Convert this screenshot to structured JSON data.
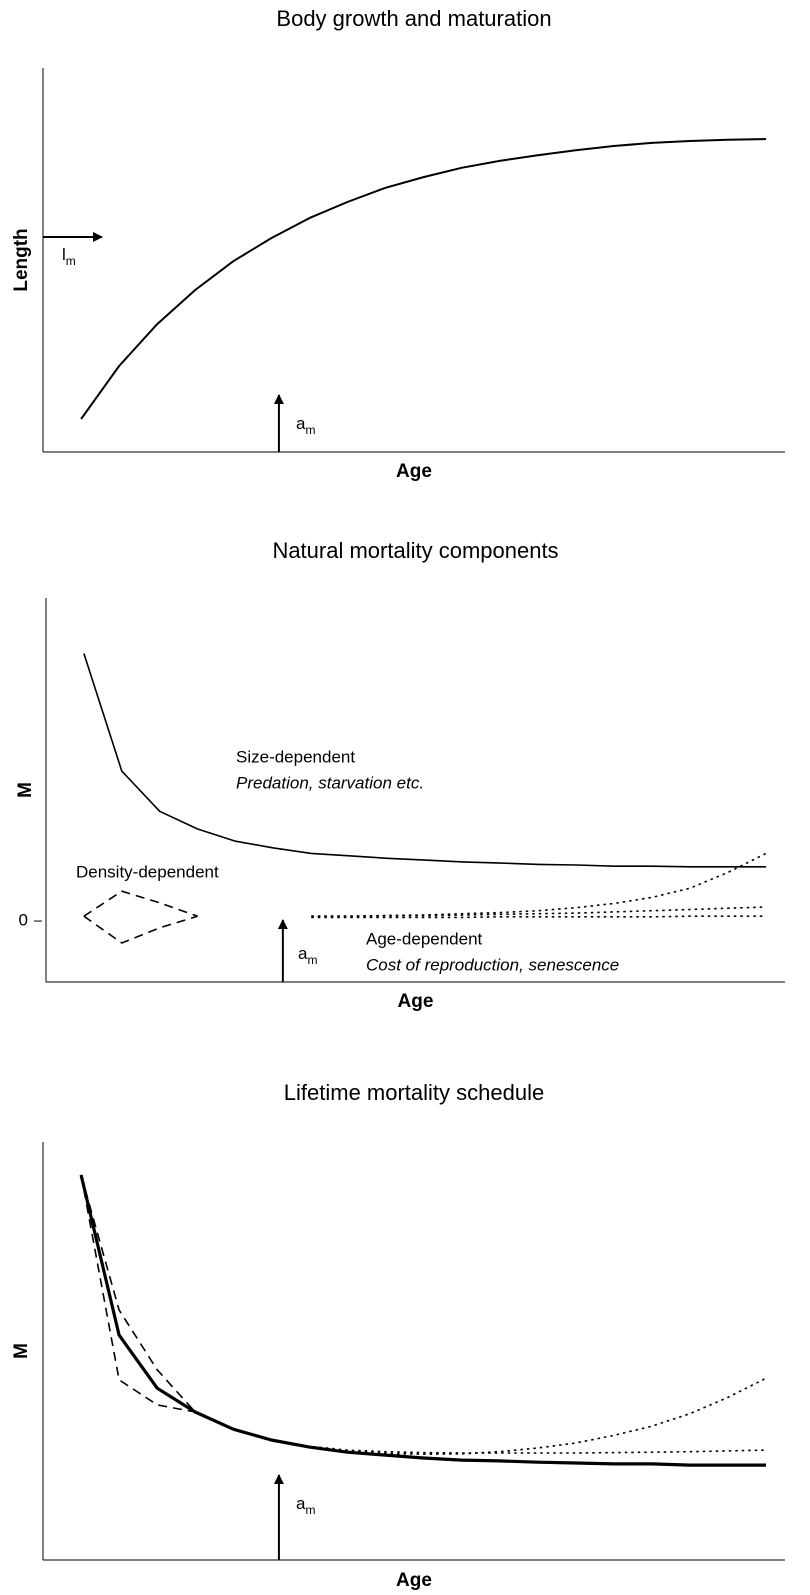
{
  "chart_data": [
    {
      "type": "line",
      "title": "Body growth and maturation",
      "xlabel": "Age",
      "ylabel": "Length",
      "xlim": [
        0,
        19.5
      ],
      "ylim": [
        0,
        100
      ],
      "x": [
        1,
        2,
        3,
        4,
        5,
        6,
        7,
        8,
        9,
        10,
        11,
        12,
        13,
        14,
        15,
        16,
        17,
        18,
        19
      ],
      "series": [
        {
          "color": "#000000",
          "dash": "solid",
          "width": 2,
          "values": [
            8.6,
            22.4,
            33.3,
            42.2,
            49.7,
            55.7,
            60.9,
            65.1,
            68.8,
            71.6,
            74.0,
            75.8,
            77.3,
            78.6,
            79.7,
            80.5,
            81.0,
            81.3,
            81.5
          ]
        }
      ],
      "maturity_length": {
        "value": 56,
        "symbol": "l",
        "subscript": "m"
      },
      "maturity_age": {
        "value": 6.2,
        "symbol": "a",
        "subscript": "m"
      },
      "annotations": []
    },
    {
      "type": "line",
      "title": "Natural mortality components",
      "xlabel": "Age",
      "ylabel": "M",
      "xlim": [
        0,
        19.5
      ],
      "ylim": [
        -1,
        5.3
      ],
      "yticks": [
        0
      ],
      "x": [
        1,
        2,
        3,
        4,
        5,
        6,
        7,
        8,
        9,
        10,
        11,
        12,
        13,
        14,
        15,
        16,
        17,
        18,
        19
      ],
      "series": [
        {
          "color": "#000000",
          "dash": "solid",
          "width": 1.6,
          "values": [
            4.39,
            2.46,
            1.8,
            1.51,
            1.31,
            1.2,
            1.11,
            1.07,
            1.03,
            1.0,
            0.97,
            0.95,
            0.93,
            0.92,
            0.9,
            0.9,
            0.89,
            0.89,
            0.89
          ]
        },
        {
          "color": "#000000",
          "dash": "dashed",
          "width": 1.6,
          "values": [
            0.08,
            0.49,
            0.3,
            0.08,
            null,
            null,
            null,
            null,
            null,
            null,
            null,
            null,
            null,
            null,
            null,
            null,
            null,
            null,
            null
          ]
        },
        {
          "color": "#000000",
          "dash": "dashed",
          "width": 1.6,
          "values": [
            0.08,
            -0.36,
            -0.11,
            0.08,
            null,
            null,
            null,
            null,
            null,
            null,
            null,
            null,
            null,
            null,
            null,
            null,
            null,
            null,
            null
          ]
        },
        {
          "color": "#000000",
          "dash": "dotted",
          "width": 1.6,
          "values": [
            null,
            null,
            null,
            null,
            null,
            null,
            0.08,
            0.08,
            0.09,
            0.1,
            0.12,
            0.14,
            0.17,
            0.22,
            0.29,
            0.39,
            0.54,
            0.8,
            1.11
          ]
        },
        {
          "color": "#000000",
          "dash": "dotted",
          "width": 1.6,
          "values": [
            null,
            null,
            null,
            null,
            null,
            null,
            0.08,
            0.08,
            0.09,
            0.09,
            0.1,
            0.11,
            0.12,
            0.13,
            0.15,
            0.17,
            0.19,
            0.21,
            0.23
          ]
        },
        {
          "color": "#000000",
          "dash": "dotted",
          "width": 1.6,
          "values": [
            null,
            null,
            null,
            null,
            null,
            null,
            0.06,
            0.06,
            0.06,
            0.06,
            0.06,
            0.07,
            0.07,
            0.07,
            0.07,
            0.07,
            0.08,
            0.08,
            0.08
          ]
        }
      ],
      "maturity_age": {
        "value": 6.25,
        "symbol": "a",
        "subscript": "m"
      },
      "annotations": [
        {
          "text": "Size-dependent",
          "italic": false
        },
        {
          "text": "Predation, starvation etc.",
          "italic": true
        },
        {
          "text": "Density-dependent",
          "italic": false
        },
        {
          "text": "Age-dependent",
          "italic": false
        },
        {
          "text": "Cost of reproduction, senescence",
          "italic": true
        }
      ]
    },
    {
      "type": "line",
      "title": "Lifetime mortality schedule",
      "xlabel": "Age",
      "ylabel": "M",
      "xlim": [
        0,
        19.5
      ],
      "ylim": [
        0,
        100
      ],
      "x": [
        1,
        2,
        3,
        4,
        5,
        6,
        7,
        8,
        9,
        10,
        11,
        12,
        13,
        14,
        15,
        16,
        17,
        18,
        19
      ],
      "series": [
        {
          "color": "#000000",
          "dash": "dashed",
          "width": 1.6,
          "values": [
            92.1,
            43.1,
            37.1,
            35.4,
            null,
            null,
            null,
            null,
            null,
            null,
            null,
            null,
            null,
            null,
            null,
            null,
            null,
            null,
            null
          ]
        },
        {
          "color": "#000000",
          "dash": "dashed",
          "width": 1.6,
          "values": [
            92.1,
            59.8,
            45.5,
            35.4,
            null,
            null,
            null,
            null,
            null,
            null,
            null,
            null,
            null,
            null,
            null,
            null,
            null,
            null,
            null
          ]
        },
        {
          "color": "#000000",
          "dash": "dotted",
          "width": 1.6,
          "values": [
            null,
            null,
            null,
            35.4,
            31.3,
            28.7,
            27.0,
            26.0,
            25.5,
            25.3,
            25.4,
            25.9,
            26.8,
            28.0,
            29.8,
            32.0,
            35.0,
            38.9,
            43.5
          ]
        },
        {
          "color": "#000000",
          "dash": "dotted",
          "width": 1.6,
          "values": [
            null,
            null,
            null,
            35.4,
            31.3,
            28.7,
            27.2,
            26.3,
            25.9,
            25.7,
            25.6,
            25.6,
            25.6,
            25.6,
            25.7,
            25.8,
            25.9,
            26.1,
            26.3
          ]
        },
        {
          "color": "#000000",
          "dash": "solid",
          "width": 3.2,
          "values": [
            92.1,
            53.8,
            41.1,
            35.4,
            31.3,
            28.7,
            27.0,
            25.8,
            25.1,
            24.4,
            23.9,
            23.7,
            23.4,
            23.2,
            23.0,
            23.0,
            22.7,
            22.7,
            22.7
          ]
        }
      ],
      "maturity_age": {
        "value": 6.2,
        "symbol": "a",
        "subscript": "m"
      },
      "annotations": []
    }
  ]
}
